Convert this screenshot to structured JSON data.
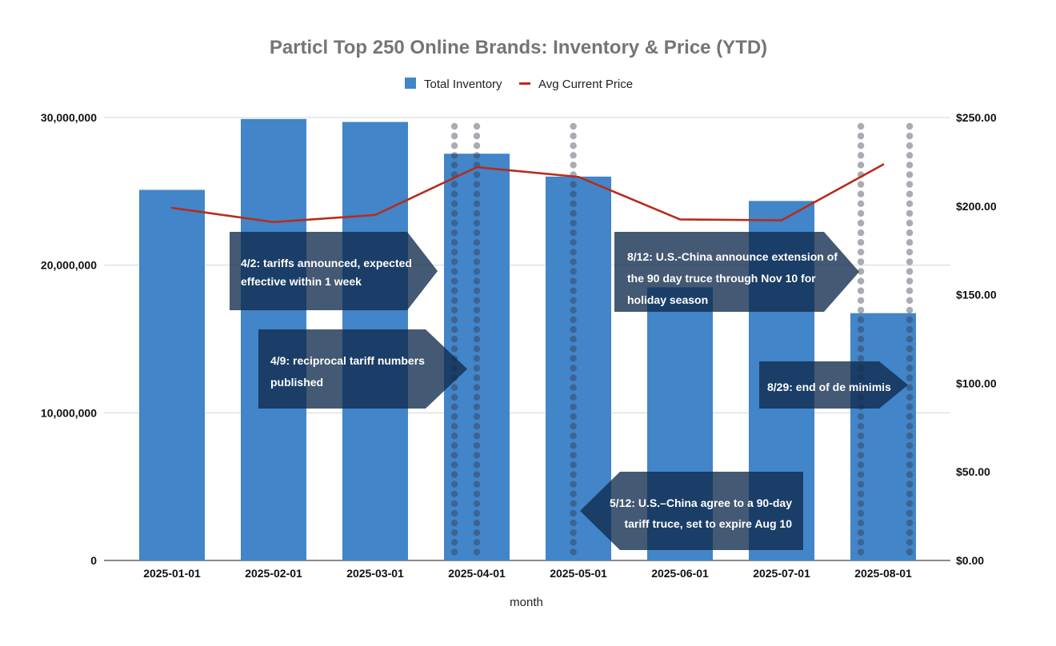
{
  "chart_data": {
    "type": "bar",
    "title": "Particl Top 250 Online Brands: Inventory & Price (YTD)",
    "xlabel": "month",
    "ylabel": "",
    "y2label": "",
    "categories": [
      "2025-01-01",
      "2025-02-01",
      "2025-03-01",
      "2025-04-01",
      "2025-05-01",
      "2025-06-01",
      "2025-07-01",
      "2025-08-01"
    ],
    "series": [
      {
        "name": "Total Inventory",
        "type": "bar",
        "axis": "left",
        "color": "#4285c8",
        "values": [
          25100000,
          29900000,
          29700000,
          27550000,
          26000000,
          18500000,
          24350000,
          16750000
        ]
      },
      {
        "name": "Avg Current Price",
        "type": "line",
        "axis": "right",
        "color": "#b72c1c",
        "values": [
          199.0,
          191.0,
          195.0,
          222.0,
          216.5,
          192.5,
          192.0,
          223.5
        ]
      }
    ],
    "ylim": [
      0,
      30000000
    ],
    "y2lim": [
      0,
      250
    ],
    "yticks": [
      "0",
      "10,000,000",
      "20,000,000",
      "30,000,000"
    ],
    "y2ticks": [
      "$0.00",
      "$50.00",
      "$100.00",
      "$150.00",
      "$200.00",
      "$250.00"
    ],
    "grid": true,
    "legend_position": "top",
    "vertical_markers": [
      {
        "date": "4/2",
        "category_index": 3,
        "offset": -0.22
      },
      {
        "date": "4/9",
        "category_index": 3,
        "offset": 0.0
      },
      {
        "date": "5/12",
        "category_index": 4,
        "offset": -0.05
      },
      {
        "date": "8/12",
        "category_index": 7,
        "offset": -0.22
      },
      {
        "date": "8/29",
        "category_index": 7,
        "offset": 0.26
      }
    ],
    "annotations": [
      {
        "lines": [
          "4/2: tariffs announced, expected",
          "effective within 1 week"
        ],
        "direction": "right"
      },
      {
        "lines": [
          "4/9: reciprocal tariff numbers",
          "published"
        ],
        "direction": "right"
      },
      {
        "lines": [
          "8/12: U.S.-China announce extension of",
          "the 90 day truce through Nov 10 for",
          "holiday season"
        ],
        "direction": "right"
      },
      {
        "lines": [
          "8/29: end of de minimis"
        ],
        "direction": "right"
      },
      {
        "lines": [
          "5/12: U.S.–China agree to a 90-day",
          "tariff truce, set to expire Aug 10"
        ],
        "direction": "left"
      }
    ]
  }
}
